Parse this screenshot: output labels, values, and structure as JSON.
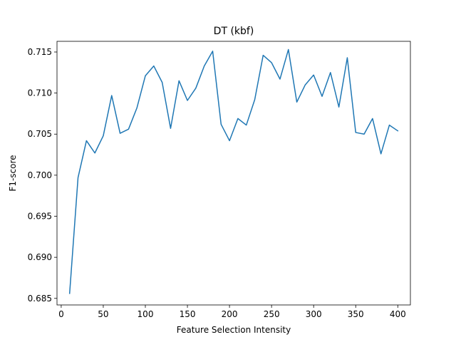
{
  "chart_data": {
    "type": "line",
    "title": "DT (kbf)",
    "xlabel": "Feature Selection Intensity",
    "ylabel": "F1-score",
    "xlim": [
      -5,
      415
    ],
    "ylim": [
      0.6842,
      0.7163
    ],
    "xticks": [
      0,
      50,
      100,
      150,
      200,
      250,
      300,
      350,
      400
    ],
    "yticks": [
      0.685,
      0.69,
      0.695,
      0.7,
      0.705,
      0.71,
      0.715
    ],
    "ytick_labels": [
      "0.685",
      "0.690",
      "0.695",
      "0.700",
      "0.705",
      "0.710",
      "0.715"
    ],
    "grid": false,
    "line_color": "#1f77b4",
    "series": [
      {
        "x": [
          10,
          20,
          30,
          40,
          50,
          60,
          70,
          80,
          90,
          100,
          110,
          120,
          130,
          140,
          150,
          160,
          170,
          180,
          190,
          200,
          210,
          220,
          230,
          240,
          250,
          260,
          270,
          280,
          290,
          300,
          310,
          320,
          330,
          340,
          350,
          360,
          370,
          380,
          390,
          400
        ],
        "values": [
          0.6856,
          0.6997,
          0.7042,
          0.7027,
          0.7048,
          0.7097,
          0.7051,
          0.7056,
          0.7082,
          0.7121,
          0.7133,
          0.7113,
          0.7057,
          0.7115,
          0.7091,
          0.7106,
          0.7133,
          0.7151,
          0.7062,
          0.7042,
          0.7069,
          0.7061,
          0.7092,
          0.7146,
          0.7137,
          0.7117,
          0.7153,
          0.7089,
          0.711,
          0.7122,
          0.7096,
          0.7125,
          0.7083,
          0.7143,
          0.7052,
          0.705,
          0.7069,
          0.7026,
          0.7061,
          0.7054
        ]
      }
    ]
  }
}
